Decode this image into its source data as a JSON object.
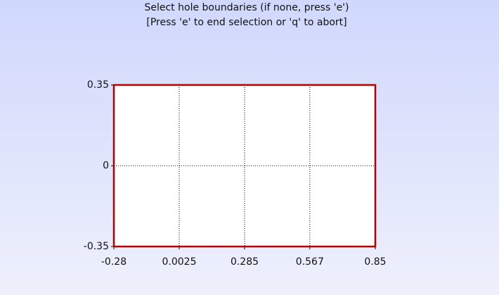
{
  "chart_data": {
    "type": "line",
    "title": "Select hole boundaries (if none, press 'e')",
    "subtitle": "[Press 'e' to end selection or 'q' to abort]",
    "x": [
      -0.28,
      0.85,
      0.85,
      -0.28,
      -0.28
    ],
    "series": [
      {
        "color": "#b00000",
        "values": [
          -0.35,
          -0.35,
          0.35,
          0.35,
          -0.35
        ]
      }
    ],
    "xlim": [
      -0.28,
      0.85
    ],
    "xticks": [
      -0.28,
      0.0025,
      0.285,
      0.567,
      0.85
    ],
    "ylim": [
      -0.35,
      0.35
    ],
    "yticks": [
      -0.35,
      0,
      0.35
    ],
    "grid": true
  }
}
